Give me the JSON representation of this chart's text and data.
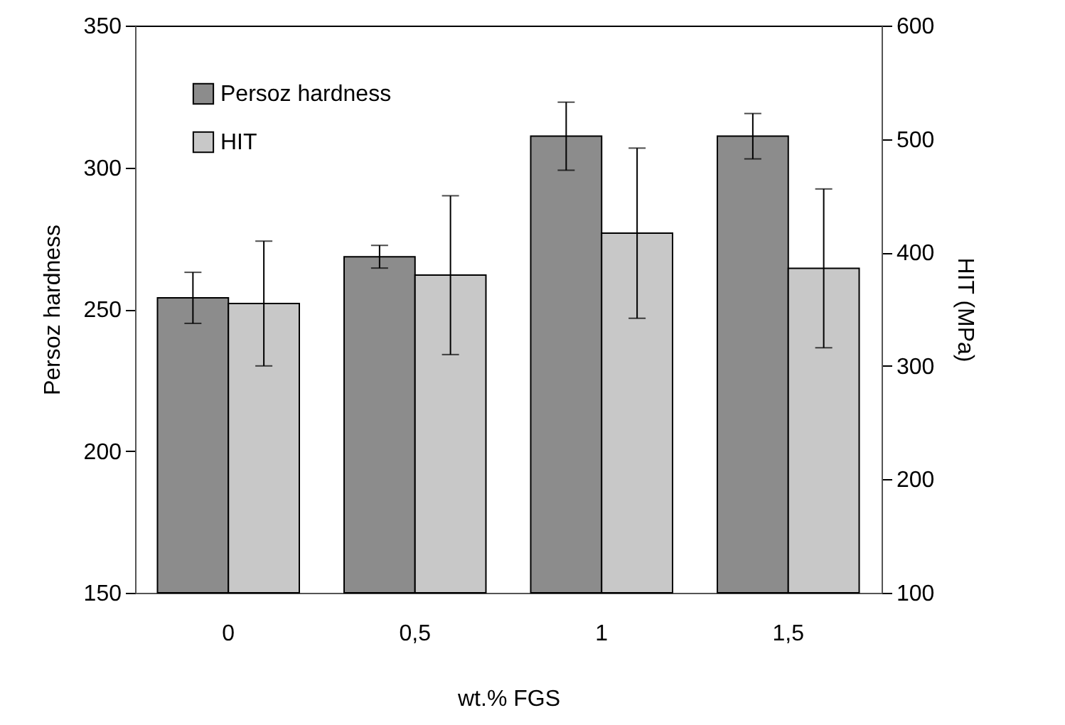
{
  "chart_data": {
    "type": "bar",
    "xlabel": "wt.% FGS",
    "ylabel": "Persoz hardness",
    "y2label": "HIT (MPa)",
    "categories": [
      "0",
      "0,5",
      "1",
      "1,5"
    ],
    "series": [
      {
        "name": "Persoz hardness",
        "color": "#8c8c8c",
        "values": [
          254,
          268.5,
          311,
          311
        ],
        "errors": [
          9,
          4,
          12,
          8
        ]
      },
      {
        "name": "HIT",
        "color": "#c8c8c8",
        "axis": "y2",
        "values": [
          355,
          380,
          417,
          386
        ],
        "errors": [
          55,
          70,
          75,
          70
        ]
      }
    ],
    "ylim": [
      150,
      350
    ],
    "yticks": [
      150,
      200,
      250,
      300,
      350
    ],
    "y2lim": [
      100,
      600
    ],
    "y2ticks": [
      100,
      200,
      300,
      400,
      500,
      600
    ],
    "legend": "top left",
    "grid": false
  }
}
